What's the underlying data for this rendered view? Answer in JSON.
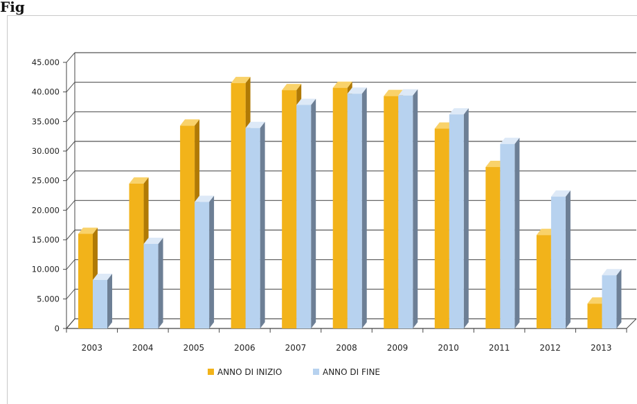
{
  "caption": "Fig",
  "chart_data": {
    "type": "bar",
    "three_d": true,
    "grid": true,
    "legend_position": "bottom",
    "categories": [
      "2003",
      "2004",
      "2005",
      "2006",
      "2007",
      "2008",
      "2009",
      "2010",
      "2011",
      "2012",
      "2013"
    ],
    "ylim": [
      0,
      45000
    ],
    "yticks": [
      {
        "value": 0,
        "label": "0"
      },
      {
        "value": 5000,
        "label": "5.000"
      },
      {
        "value": 10000,
        "label": "10.000"
      },
      {
        "value": 15000,
        "label": "15.000"
      },
      {
        "value": 20000,
        "label": "20.000"
      },
      {
        "value": 25000,
        "label": "25.000"
      },
      {
        "value": 30000,
        "label": "30.000"
      },
      {
        "value": 35000,
        "label": "35.000"
      },
      {
        "value": 40000,
        "label": "40.000"
      },
      {
        "value": 45000,
        "label": "45.000"
      }
    ],
    "series": [
      {
        "name": "ANNO DI INIZIO",
        "color": "#f2b31a",
        "values": [
          16000,
          24500,
          34300,
          41500,
          40300,
          40700,
          39300,
          33800,
          27300,
          15800,
          4200
        ]
      },
      {
        "name": "ANNO DI FINE",
        "color": "#b7d2ef",
        "values": [
          8200,
          14300,
          21400,
          33900,
          37800,
          39700,
          39400,
          36200,
          31200,
          22300,
          9000
        ]
      }
    ]
  }
}
